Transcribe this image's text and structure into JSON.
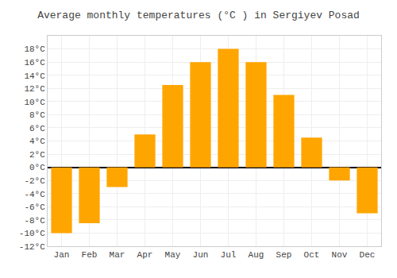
{
  "chart_data": {
    "type": "bar",
    "title": "Average monthly temperatures (°C ) in Sergiyev Posad",
    "categories": [
      "Jan",
      "Feb",
      "Mar",
      "Apr",
      "May",
      "Jun",
      "Jul",
      "Aug",
      "Sep",
      "Oct",
      "Nov",
      "Dec"
    ],
    "values": [
      -10,
      -8.5,
      -3,
      5,
      12.5,
      16,
      18,
      16,
      11,
      4.5,
      -2,
      -7
    ],
    "color": "#FFA500",
    "ylim": [
      -12,
      20
    ],
    "yticks": [
      {
        "value": -12,
        "label": "-12°C"
      },
      {
        "value": -10,
        "label": "-10°C"
      },
      {
        "value": -8,
        "label": "-8°C"
      },
      {
        "value": -6,
        "label": "-6°C"
      },
      {
        "value": -4,
        "label": "-4°C"
      },
      {
        "value": -2,
        "label": "-2°C"
      },
      {
        "value": 0,
        "label": "0°C"
      },
      {
        "value": 2,
        "label": "2°C"
      },
      {
        "value": 4,
        "label": "4°C"
      },
      {
        "value": 6,
        "label": "6°C"
      },
      {
        "value": 8,
        "label": "8°C"
      },
      {
        "value": 10,
        "label": "10°C"
      },
      {
        "value": 12,
        "label": "12°C"
      },
      {
        "value": 14,
        "label": "14°C"
      },
      {
        "value": 16,
        "label": "16°C"
      },
      {
        "value": 18,
        "label": "18°C"
      }
    ],
    "grid": true
  }
}
